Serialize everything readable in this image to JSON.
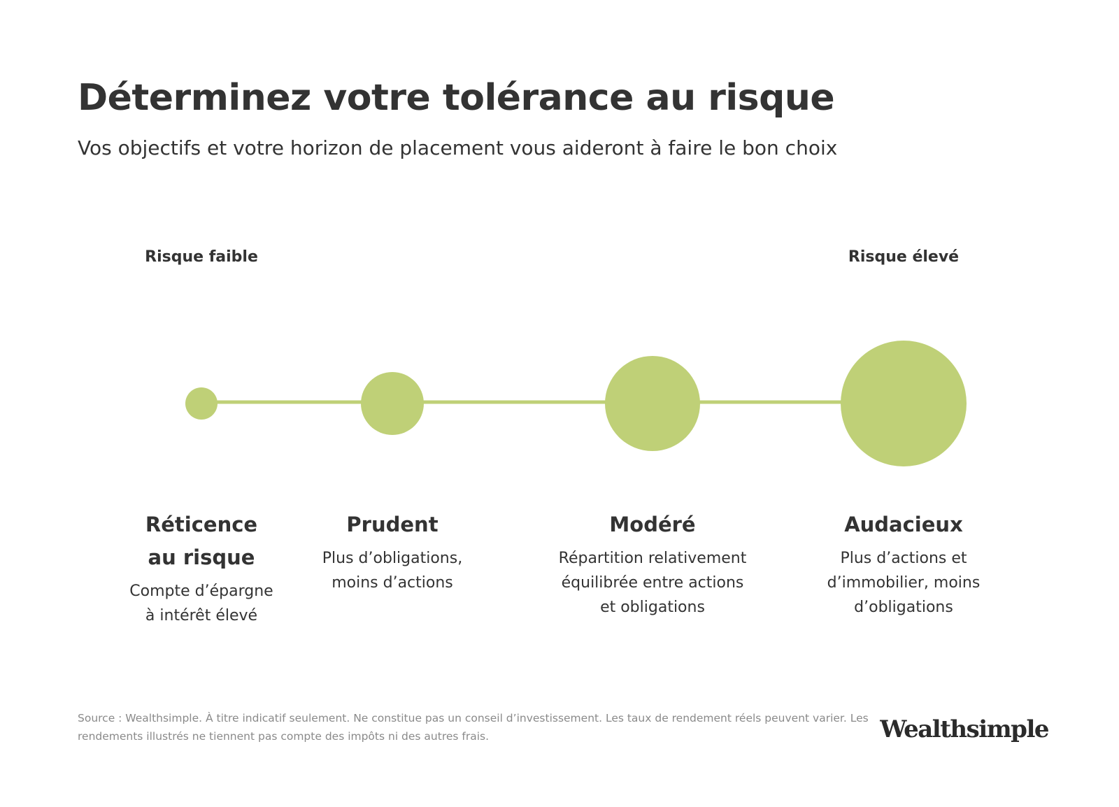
{
  "header": {
    "title": "Déterminez votre tolérance au risque",
    "subtitle": "Vos objectifs et votre horizon de placement vous aideront à faire le bon choix"
  },
  "scale": {
    "low": "Risque faible",
    "high": "Risque élevé"
  },
  "profiles": [
    {
      "name": [
        "Réticence",
        "au risque"
      ],
      "description": [
        "Compte d’épargne",
        "à intérêt élevé"
      ]
    },
    {
      "name": [
        "Prudent"
      ],
      "description": [
        "Plus d’obligations,",
        "moins d’actions"
      ]
    },
    {
      "name": [
        "Modéré"
      ],
      "description": [
        "Répartition relativement",
        "équilibrée entre actions",
        "et obligations"
      ]
    },
    {
      "name": [
        "Audacieux"
      ],
      "description": [
        "Plus d’actions et",
        "d’immobilier, moins",
        "d’obligations"
      ]
    }
  ],
  "footer": {
    "source": [
      "Source : Wealthsimple. À titre indicatif seulement. Ne constitue pas un conseil d’investissement. Les taux de rendement réels peuvent varier. Les",
      "rendements illustrés ne tiennent pas compte des impôts ni des autres frais."
    ],
    "logo": "Wealthsimple"
  }
}
